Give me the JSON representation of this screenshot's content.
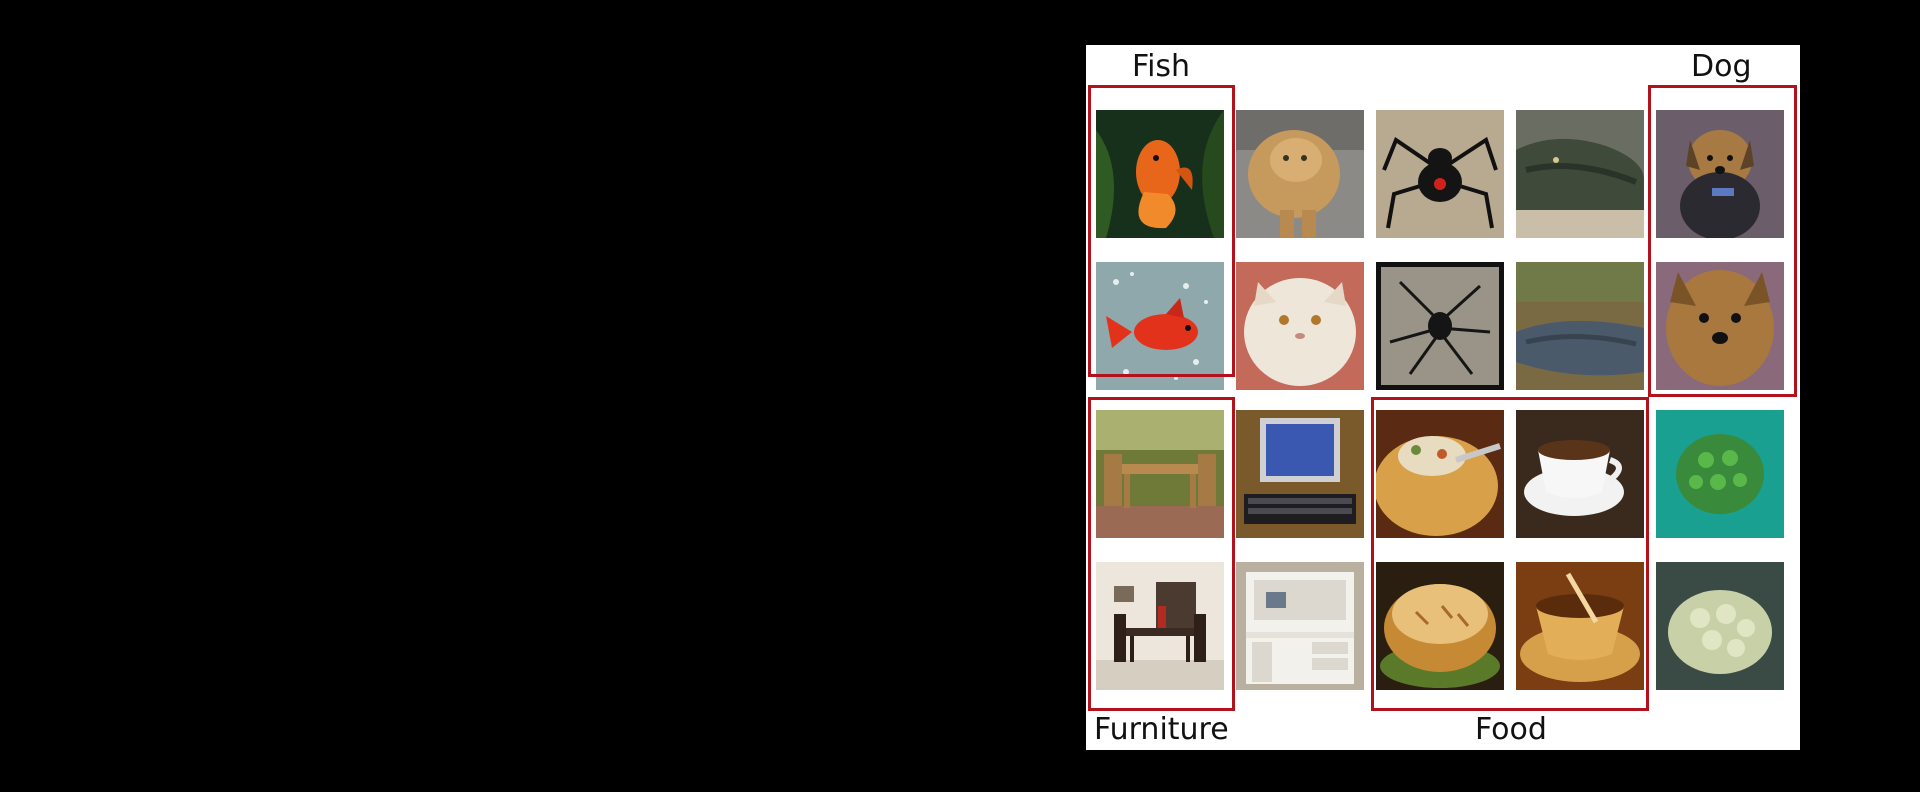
{
  "colors": {
    "box": "#b3121d",
    "background": "#000000",
    "panel": "#ffffff"
  },
  "labels": {
    "fish": "Fish",
    "dog": "Dog",
    "furniture": "Furniture",
    "food": "Food"
  },
  "thumbnails": [
    [
      "goldfish-icon",
      "persian-cat-icon",
      "black-widow-icon",
      "crocodile-icon",
      "yorkie-icon"
    ],
    [
      "goldfish-icon",
      "persian-cat-icon",
      "black-widow-icon",
      "crocodile-icon",
      "yorkie-icon"
    ],
    [
      "dining-set-icon",
      "computer-desk-icon",
      "pot-pie-icon",
      "coffee-cup-icon",
      "coral-icon"
    ],
    [
      "dining-room-icon",
      "white-desk-icon",
      "pot-pie-icon",
      "coffee-cup-icon",
      "coral-icon"
    ]
  ]
}
